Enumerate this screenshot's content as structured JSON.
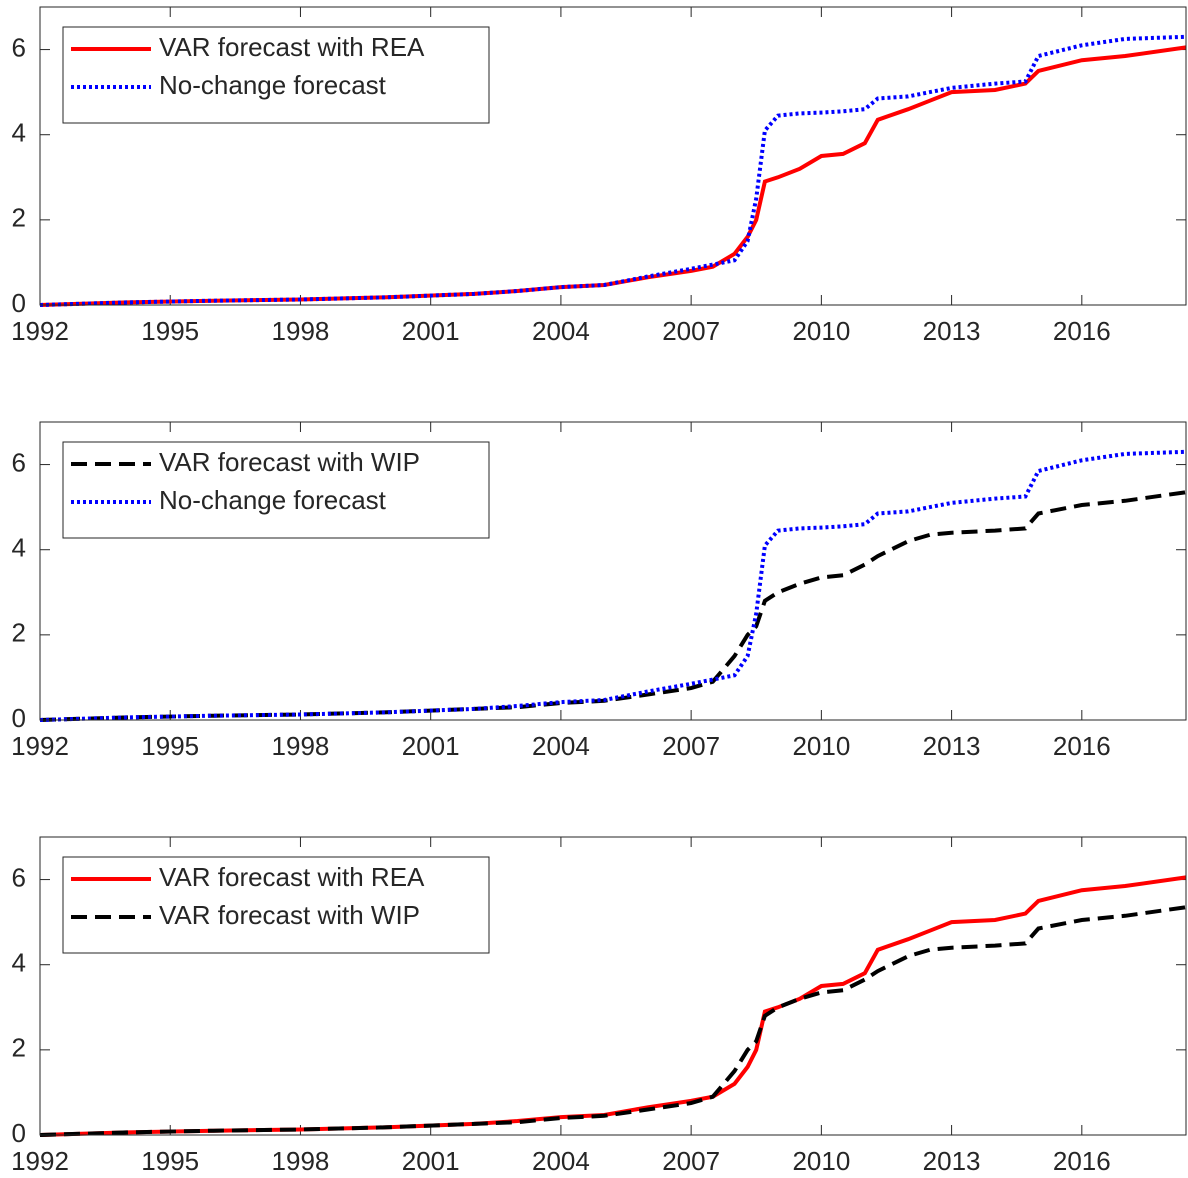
{
  "chart_data": [
    {
      "type": "line",
      "legend": "upper left",
      "xlim": [
        1992,
        2018.4
      ],
      "xticks": [
        1992,
        1995,
        1998,
        2001,
        2004,
        2007,
        2010,
        2013,
        2016
      ],
      "ylim": [
        0,
        7
      ],
      "yticks": [
        0,
        2,
        4,
        6
      ],
      "x": [
        1992,
        1994,
        1996,
        1998,
        2000,
        2002,
        2003,
        2004,
        2005,
        2006,
        2007,
        2007.5,
        2008,
        2008.3,
        2008.5,
        2008.7,
        2009,
        2009.5,
        2010,
        2010.5,
        2011,
        2011.3,
        2012,
        2012.5,
        2013,
        2014,
        2014.7,
        2015,
        2016,
        2017,
        2018.4
      ],
      "series": [
        {
          "name": "VAR forecast with REA",
          "color": "#ff0000",
          "line_style": "solid",
          "values": [
            0,
            0.06,
            0.1,
            0.13,
            0.18,
            0.26,
            0.33,
            0.42,
            0.47,
            0.65,
            0.8,
            0.9,
            1.2,
            1.6,
            2.0,
            2.9,
            3.0,
            3.2,
            3.5,
            3.55,
            3.8,
            4.35,
            4.6,
            4.8,
            5.0,
            5.05,
            5.2,
            5.5,
            5.75,
            5.85,
            6.05
          ]
        },
        {
          "name": "No-change forecast",
          "color": "#0000ff",
          "line_style": "dotted",
          "values": [
            0,
            0.06,
            0.1,
            0.13,
            0.18,
            0.26,
            0.33,
            0.42,
            0.47,
            0.67,
            0.85,
            0.95,
            1.05,
            1.5,
            2.5,
            4.1,
            4.45,
            4.5,
            4.52,
            4.55,
            4.6,
            4.85,
            4.9,
            5.0,
            5.1,
            5.2,
            5.25,
            5.85,
            6.1,
            6.25,
            6.3
          ]
        }
      ]
    },
    {
      "type": "line",
      "legend": "upper left",
      "xlim": [
        1992,
        2018.4
      ],
      "xticks": [
        1992,
        1995,
        1998,
        2001,
        2004,
        2007,
        2010,
        2013,
        2016
      ],
      "ylim": [
        0,
        7
      ],
      "yticks": [
        0,
        2,
        4,
        6
      ],
      "x": [
        1992,
        1994,
        1996,
        1998,
        2000,
        2002,
        2003,
        2004,
        2005,
        2006,
        2007,
        2007.5,
        2008,
        2008.3,
        2008.5,
        2008.7,
        2009,
        2009.5,
        2010,
        2010.5,
        2011,
        2011.3,
        2012,
        2012.5,
        2013,
        2014,
        2014.7,
        2015,
        2016,
        2017,
        2018.4
      ],
      "series": [
        {
          "name": "VAR forecast with WIP",
          "color": "#000000",
          "line_style": "dashed",
          "values": [
            0,
            0.06,
            0.1,
            0.13,
            0.18,
            0.26,
            0.3,
            0.4,
            0.45,
            0.6,
            0.75,
            0.9,
            1.5,
            2.0,
            2.2,
            2.8,
            3.0,
            3.2,
            3.35,
            3.4,
            3.65,
            3.85,
            4.2,
            4.35,
            4.4,
            4.45,
            4.5,
            4.85,
            5.05,
            5.15,
            5.35
          ]
        },
        {
          "name": "No-change forecast",
          "color": "#0000ff",
          "line_style": "dotted",
          "values": [
            0,
            0.06,
            0.1,
            0.13,
            0.18,
            0.26,
            0.33,
            0.42,
            0.47,
            0.67,
            0.85,
            0.95,
            1.05,
            1.5,
            2.5,
            4.1,
            4.45,
            4.5,
            4.52,
            4.55,
            4.6,
            4.85,
            4.9,
            5.0,
            5.1,
            5.2,
            5.25,
            5.85,
            6.1,
            6.25,
            6.3
          ]
        }
      ]
    },
    {
      "type": "line",
      "legend": "upper left",
      "xlim": [
        1992,
        2018.4
      ],
      "xticks": [
        1992,
        1995,
        1998,
        2001,
        2004,
        2007,
        2010,
        2013,
        2016
      ],
      "ylim": [
        0,
        7
      ],
      "yticks": [
        0,
        2,
        4,
        6
      ],
      "x": [
        1992,
        1994,
        1996,
        1998,
        2000,
        2002,
        2003,
        2004,
        2005,
        2006,
        2007,
        2007.5,
        2008,
        2008.3,
        2008.5,
        2008.7,
        2009,
        2009.5,
        2010,
        2010.5,
        2011,
        2011.3,
        2012,
        2012.5,
        2013,
        2014,
        2014.7,
        2015,
        2016,
        2017,
        2018.4
      ],
      "series": [
        {
          "name": "VAR forecast with REA",
          "color": "#ff0000",
          "line_style": "solid",
          "values": [
            0,
            0.06,
            0.1,
            0.13,
            0.18,
            0.26,
            0.33,
            0.42,
            0.47,
            0.65,
            0.8,
            0.9,
            1.2,
            1.6,
            2.0,
            2.9,
            3.0,
            3.2,
            3.5,
            3.55,
            3.8,
            4.35,
            4.6,
            4.8,
            5.0,
            5.05,
            5.2,
            5.5,
            5.75,
            5.85,
            6.05
          ]
        },
        {
          "name": "VAR forecast with WIP",
          "color": "#000000",
          "line_style": "dashed",
          "values": [
            0,
            0.06,
            0.1,
            0.13,
            0.18,
            0.26,
            0.3,
            0.4,
            0.45,
            0.6,
            0.75,
            0.9,
            1.5,
            2.0,
            2.2,
            2.8,
            3.0,
            3.2,
            3.35,
            3.4,
            3.65,
            3.85,
            4.2,
            4.35,
            4.4,
            4.45,
            4.5,
            4.85,
            5.05,
            5.15,
            5.35
          ]
        }
      ]
    }
  ]
}
